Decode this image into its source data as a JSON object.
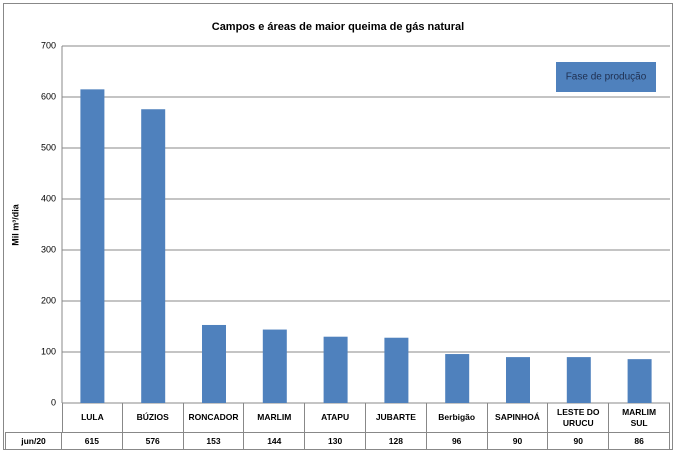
{
  "chart_data": {
    "type": "bar",
    "title": "Campos e áreas de maior queima de gás natural",
    "y_label": "Mil m³/dia",
    "annotation": "Fase de produção",
    "categories": [
      "LULA",
      "BÚZIOS",
      "RONCADOR",
      "MARLIM",
      "ATAPU",
      "JUBARTE",
      "Berbigão",
      "SAPINHOÁ",
      "LESTE DO URUCU",
      "MARLIM SUL"
    ],
    "series": [
      {
        "name": "jun/20",
        "color": "#4f81bd",
        "values": [
          615,
          576,
          153,
          144,
          130,
          128,
          96,
          90,
          90,
          86
        ]
      }
    ],
    "ylim": [
      0,
      700
    ],
    "yticks": [
      0,
      100,
      200,
      300,
      400,
      500,
      600,
      700
    ],
    "grid": true
  }
}
